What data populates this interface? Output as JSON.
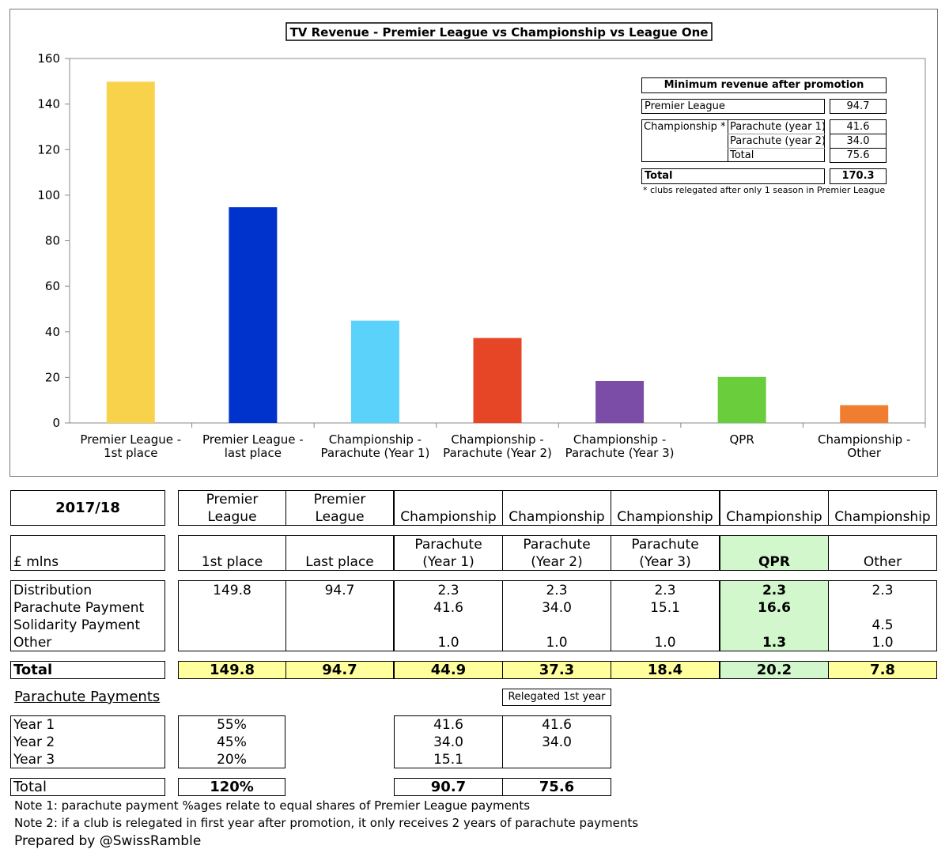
{
  "chart_data": {
    "type": "bar",
    "title": "TV Revenue - Premier League vs Championship vs League One",
    "categories": [
      [
        "Premier League -",
        "1st place"
      ],
      [
        "Premier League -",
        "last place"
      ],
      [
        "Championship -",
        "Parachute (Year 1)"
      ],
      [
        "Championship -",
        "Parachute (Year 2)"
      ],
      [
        "Championship -",
        "Parachute (Year 3)"
      ],
      [
        "QPR"
      ],
      [
        "Championship -",
        "Other"
      ]
    ],
    "values": [
      149.8,
      94.7,
      44.9,
      37.3,
      18.4,
      20.2,
      7.8
    ],
    "colors": [
      "#f8d24a",
      "#0033cc",
      "#5ad2fa",
      "#e64626",
      "#7b4da6",
      "#6acd3c",
      "#f07d30"
    ],
    "ylim": [
      0,
      160
    ],
    "yticks": [
      "0",
      "20",
      "40",
      "60",
      "80",
      "100",
      "120",
      "140",
      "160"
    ],
    "xlabel": "",
    "ylabel": "",
    "inset": {
      "title": "Minimum revenue after promotion",
      "pl_label": "Premier League",
      "pl_value": "94.7",
      "ch_label": "Championship *",
      "parachute_y1_label": "Parachute (year 1)",
      "parachute_y1_value": "41.6",
      "parachute_y2_label": "Parachute (year 2)",
      "parachute_y2_value": "34.0",
      "subtotal_label": "Total",
      "subtotal_value": "75.6",
      "total_label": "Total",
      "total_value": "170.3",
      "footnote": "* clubs relegated after only 1 season in Premier League"
    }
  },
  "table": {
    "season": "2017/18",
    "units": "£ mlns",
    "leagues": [
      [
        "Premier",
        "League"
      ],
      [
        "Premier",
        "League"
      ],
      [
        "Championship"
      ],
      [
        "Championship"
      ],
      [
        "Championship"
      ],
      [
        "Championship"
      ],
      [
        "Championship"
      ]
    ],
    "subheads": [
      [
        "1st place"
      ],
      [
        "Last place"
      ],
      [
        "Parachute",
        "(Year 1)"
      ],
      [
        "Parachute",
        "(Year 2)"
      ],
      [
        "Parachute",
        "(Year 3)"
      ],
      [
        "QPR"
      ],
      [
        "Other"
      ]
    ],
    "row_labels": [
      "Distribution",
      "Parachute Payment",
      "Solidarity Payment",
      "Other"
    ],
    "cells": [
      [
        "149.8",
        "",
        "",
        ""
      ],
      [
        "94.7",
        "",
        "",
        ""
      ],
      [
        "2.3",
        "41.6",
        "",
        "1.0"
      ],
      [
        "2.3",
        "34.0",
        "",
        "1.0"
      ],
      [
        "2.3",
        "15.1",
        "",
        "1.0"
      ],
      [
        "2.3",
        "16.6",
        "",
        "1.3"
      ],
      [
        "2.3",
        "",
        "4.5",
        "1.0"
      ]
    ],
    "total_label": "Total",
    "totals": [
      "149.8",
      "94.7",
      "44.9",
      "37.3",
      "18.4",
      "20.2",
      "7.8"
    ]
  },
  "parachute": {
    "heading": "Parachute Payments",
    "relegated_label": "Relegated 1st year",
    "years": [
      "Year 1",
      "Year 2",
      "Year 3"
    ],
    "percents": [
      "55%",
      "45%",
      "20%"
    ],
    "standard": [
      "41.6",
      "34.0",
      "15.1"
    ],
    "relegated": [
      "41.6",
      "34.0"
    ],
    "total_label": "Total",
    "total_percent": "120%",
    "total_standard": "90.7",
    "total_relegated": "75.6"
  },
  "notes": [
    "Note 1: parachute payment %ages relate to equal shares of Premier League payments",
    "Note 2: if a club is relegated in first year after promotion, it only receives 2 years of parachute payments"
  ],
  "credit": "Prepared by @SwissRamble"
}
